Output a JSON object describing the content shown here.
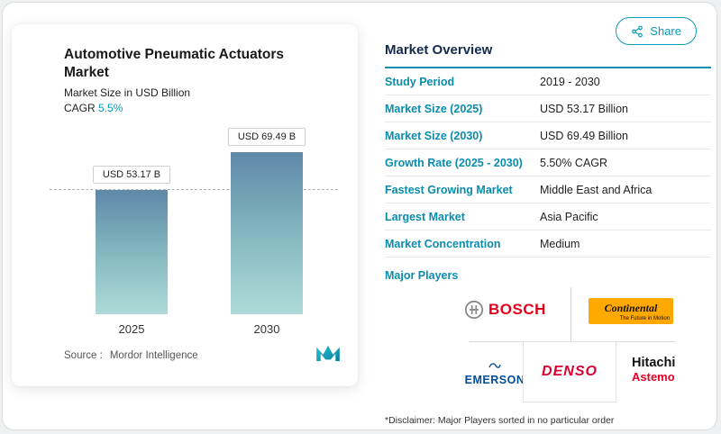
{
  "header": {
    "share_label": "Share"
  },
  "chart_card": {
    "title": "Automotive Pneumatic Actuators Market",
    "subtitle": "Market Size in USD Billion",
    "cagr_label": "CAGR",
    "cagr_value": "5.5%",
    "source_label": "Source :",
    "source_value": "Mordor Intelligence"
  },
  "chart_data": {
    "type": "bar",
    "categories": [
      "2025",
      "2030"
    ],
    "values": [
      53.17,
      69.49
    ],
    "value_labels": [
      "USD 53.17 B",
      "USD 69.49 B"
    ],
    "title": "Automotive Pneumatic Actuators Market",
    "ylabel": "Market Size in USD Billion",
    "ylim": [
      0,
      69.49
    ],
    "grid": false,
    "annotations": [
      "dashed horizontal reference line at 2025 value"
    ]
  },
  "market_overview": {
    "title": "Market Overview",
    "rows": [
      {
        "label": "Study Period",
        "value": "2019 - 2030"
      },
      {
        "label": "Market Size (2025)",
        "value": "USD 53.17 Billion"
      },
      {
        "label": "Market Size (2030)",
        "value": "USD 69.49 Billion"
      },
      {
        "label": "Growth Rate (2025 - 2030)",
        "value": "5.50% CAGR"
      },
      {
        "label": "Fastest Growing Market",
        "value": "Middle East and Africa"
      },
      {
        "label": "Largest Market",
        "value": "Asia Pacific"
      },
      {
        "label": "Market Concentration",
        "value": "Medium"
      }
    ],
    "major_players_label": "Major Players",
    "major_players": [
      {
        "label": "BOSCH"
      },
      {
        "label": "Continental",
        "tagline": "The Future in Motion"
      },
      {
        "label": "EMERSON"
      },
      {
        "label": "DENSO"
      },
      {
        "label": "Hitachi",
        "label2": "Astemo"
      }
    ],
    "disclaimer": "*Disclaimer: Major Players sorted in no particular order"
  },
  "colors": {
    "accent_teal": "#0a9bbd",
    "bar_gradient_top": "#5f88a8",
    "bar_gradient_bottom": "#aedbd9",
    "bosch_red": "#e2001a",
    "continental_yellow": "#ffa800",
    "denso_red": "#dc0032",
    "emerson_blue": "#004c97",
    "hitachi_black": "#111111",
    "astemo_red": "#e60027"
  }
}
